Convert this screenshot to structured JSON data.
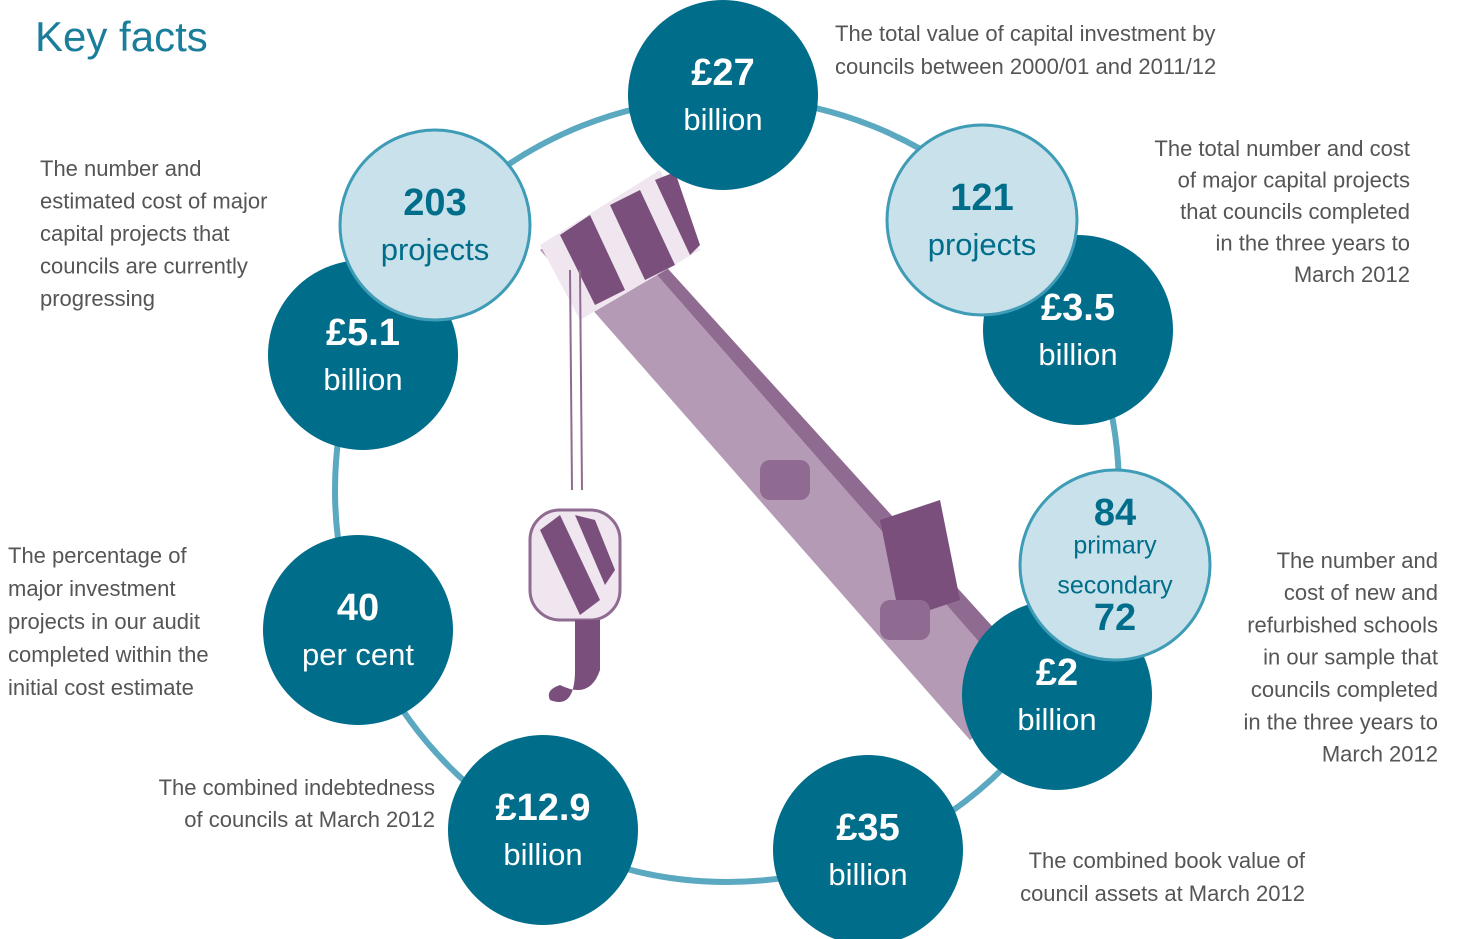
{
  "title": "Key facts",
  "facts": [
    {
      "figure": [
        "£27",
        "billion"
      ],
      "description": [
        "The total value of capital investment by",
        "councils between 2000/01 and 2011/12"
      ]
    },
    {
      "figure": [
        "£3.5",
        "billion"
      ]
    },
    {
      "figure": [
        "121",
        "projects"
      ],
      "description": [
        "The total number and cost",
        "of major capital projects",
        "that councils completed",
        "in the three years to",
        "March 2012"
      ]
    },
    {
      "figure": [
        "£2",
        "billion"
      ]
    },
    {
      "figure": [
        "84",
        "primary",
        "secondary",
        "72"
      ],
      "description": [
        "The number and",
        "cost of new and",
        "refurbished schools",
        "in our sample that",
        "councils completed",
        "in the three years to",
        "March 2012"
      ]
    },
    {
      "figure": [
        "£35",
        "billion"
      ],
      "description": [
        "The combined book value of",
        "council assets at March 2012"
      ]
    },
    {
      "figure": [
        "£12.9",
        "billion"
      ],
      "description": [
        "The combined indebtedness",
        "of councils at March 2012"
      ]
    },
    {
      "figure": [
        "40",
        "per cent"
      ],
      "description": [
        "The percentage of",
        "major investment",
        "projects in our audit",
        "completed within the",
        "initial cost estimate"
      ]
    },
    {
      "figure": [
        "£5.1",
        "billion"
      ]
    },
    {
      "figure": [
        "203",
        "projects"
      ],
      "description": [
        "The number and",
        "estimated cost of major",
        "capital projects that",
        "councils are currently",
        "progressing"
      ]
    }
  ]
}
